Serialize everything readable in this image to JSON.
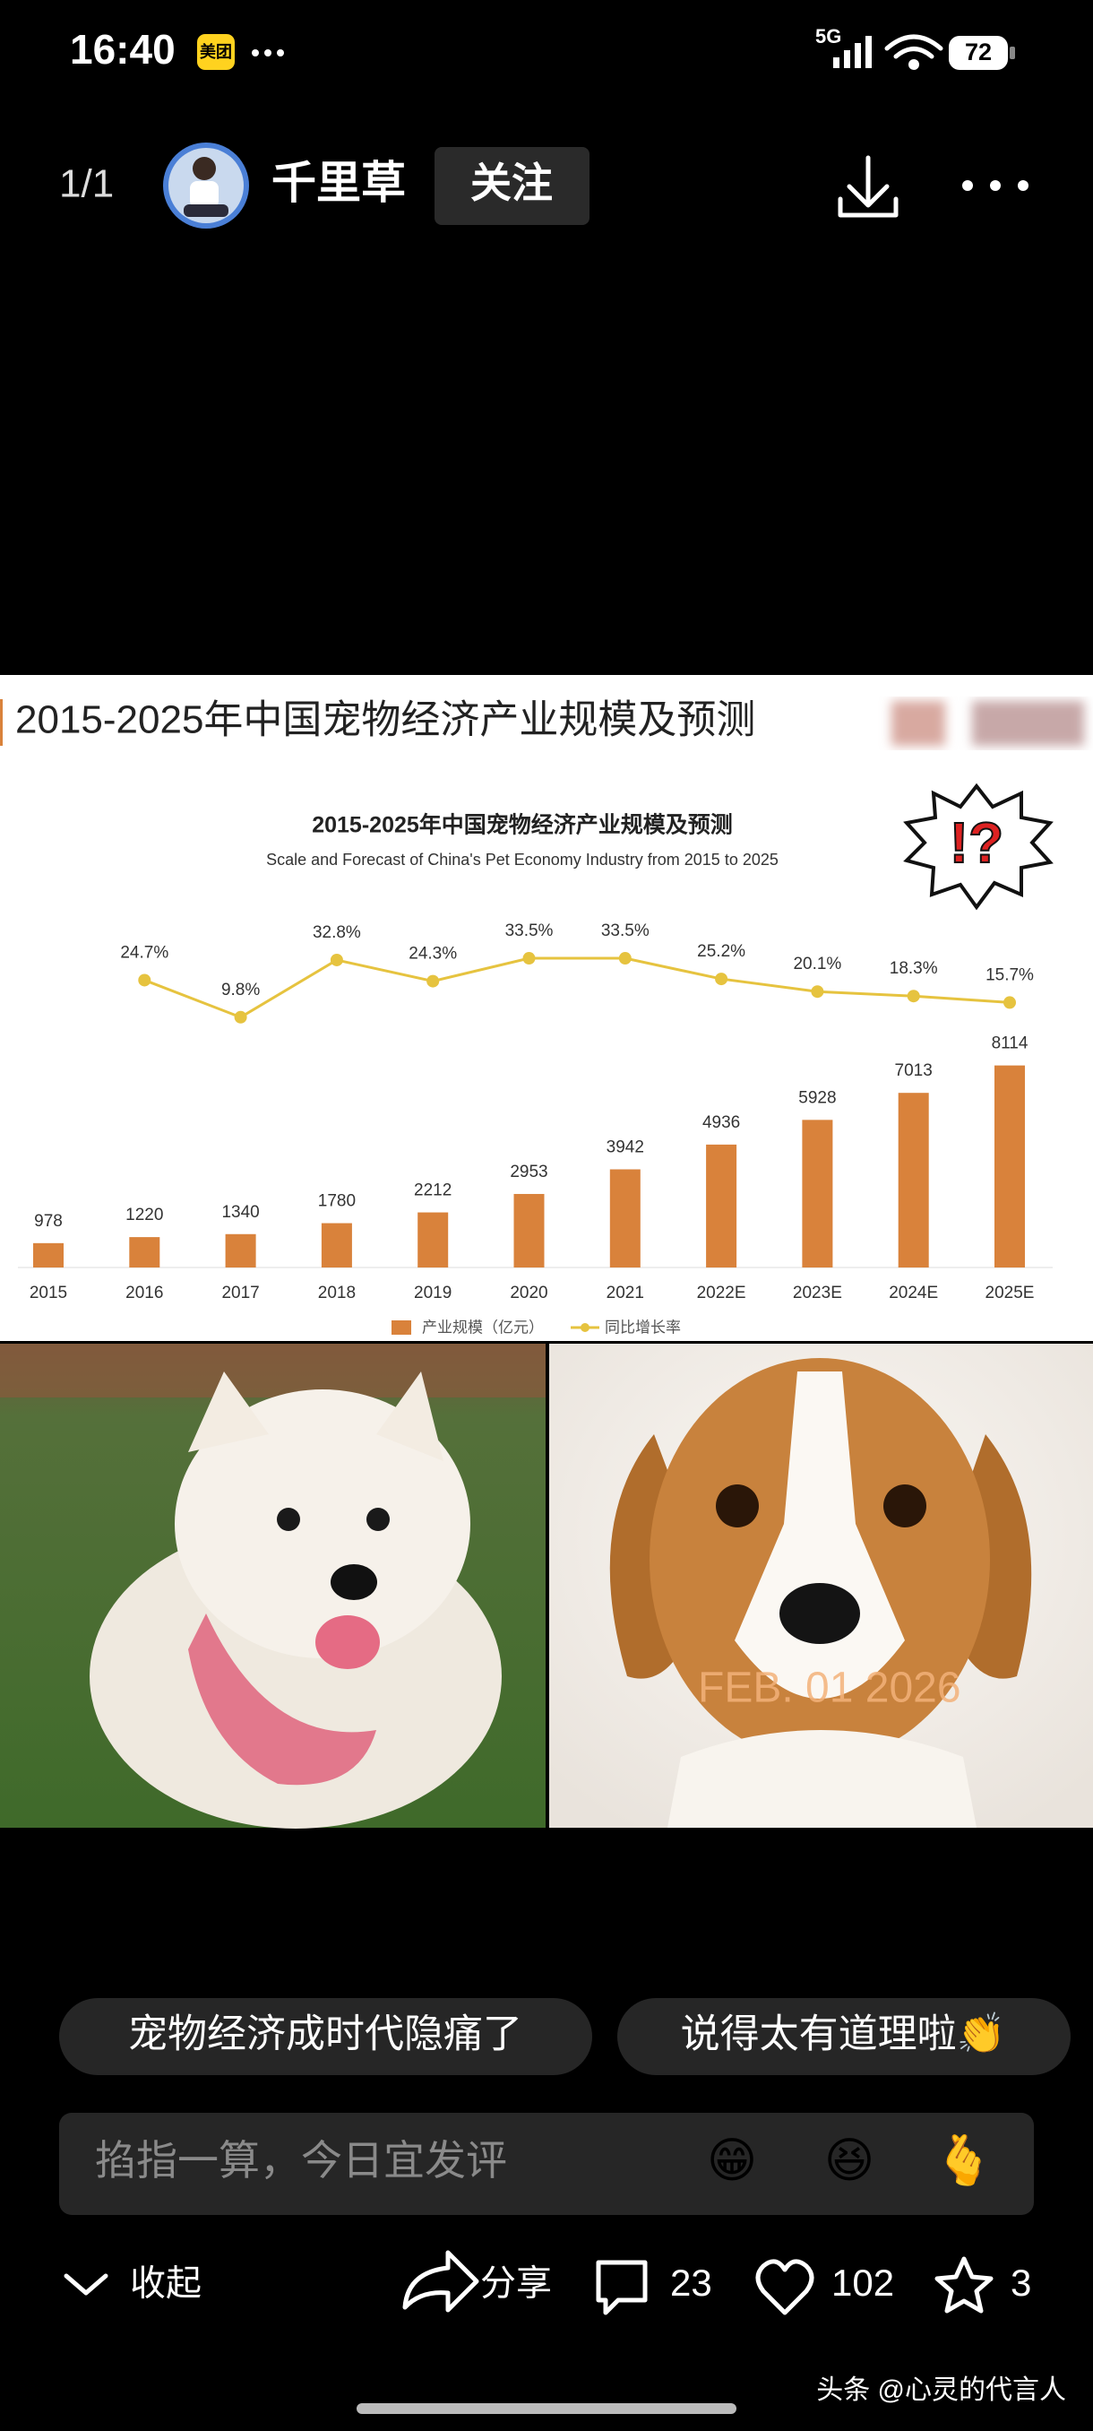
{
  "status_bar": {
    "time": "16:40",
    "app_badge": "美团",
    "network": "5G",
    "battery": "72"
  },
  "header": {
    "page_indicator": "1/1",
    "author": "千里草",
    "follow": "关注"
  },
  "image_heading": "2015-2025年中国宠物经济产业规模及预测",
  "sticker": "!?",
  "chart_data": {
    "type": "bar",
    "title": "2015-2025年中国宠物经济产业规模及预测",
    "subtitle": "Scale and Forecast of China's Pet Economy Industry from 2015 to 2025",
    "categories": [
      "2015",
      "2016",
      "2017",
      "2018",
      "2019",
      "2020",
      "2021",
      "2022E",
      "2023E",
      "2024E",
      "2025E"
    ],
    "series": [
      {
        "name": "产业规模（亿元）",
        "color": "#d9823b",
        "values": [
          978,
          1220,
          1340,
          1780,
          2212,
          2953,
          3942,
          4936,
          5928,
          7013,
          8114
        ]
      },
      {
        "name": "同比增长率",
        "color": "#e6c33f",
        "axis": "y2",
        "type": "line",
        "values": [
          null,
          24.7,
          9.8,
          32.8,
          24.3,
          33.5,
          33.5,
          25.2,
          20.1,
          18.3,
          15.7
        ],
        "value_labels": [
          null,
          "24.7%",
          "9.8%",
          "32.8%",
          "24.3%",
          "33.5%",
          "33.5%",
          "25.2%",
          "20.1%",
          "18.3%",
          "15.7%"
        ]
      }
    ],
    "ylim": [
      0,
      9000
    ],
    "y2lim": [
      0,
      40
    ],
    "legend": "bottom"
  },
  "photo_stamp": "FEB. 01 2026",
  "comment_chips": [
    "宠物经济成时代隐痛了",
    "说得太有道理啦👏"
  ],
  "comment_input": {
    "placeholder": "掐指一算，今日宜发评",
    "emojis": [
      "😁",
      "😆",
      "🫰"
    ]
  },
  "actions": {
    "collapse": "收起",
    "share": "分享",
    "comments": "23",
    "likes": "102",
    "favorites": "3"
  },
  "watermark": "头条 @心灵的代言人"
}
